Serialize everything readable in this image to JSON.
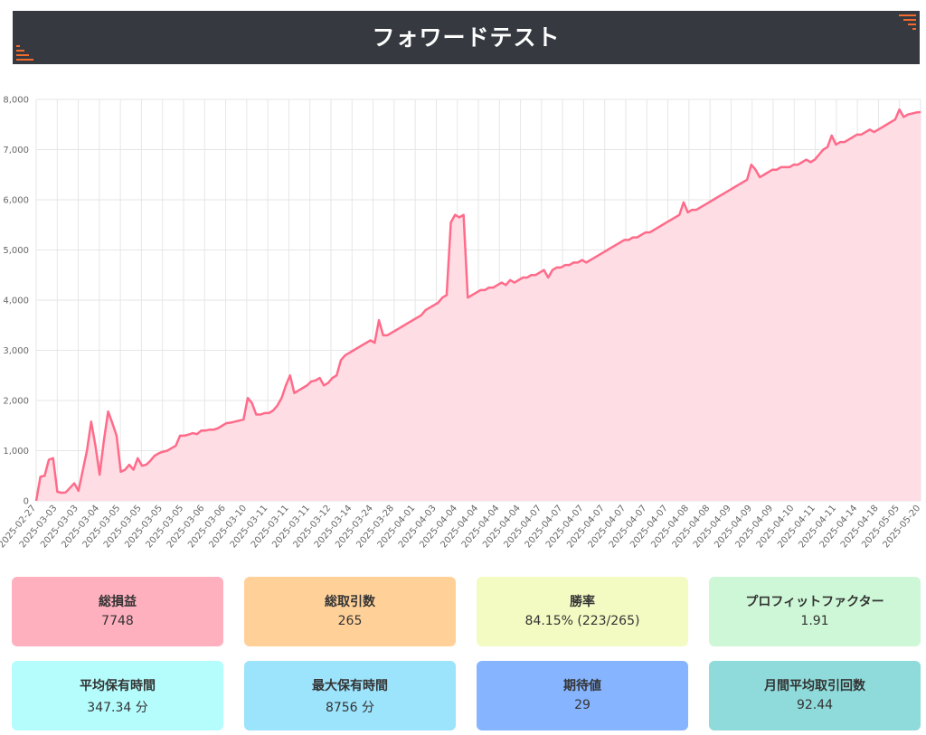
{
  "header": {
    "title": "フォワードテスト",
    "accent_color": "#f26a2c"
  },
  "chart_data": {
    "type": "area",
    "title": "",
    "xlabel": "",
    "ylabel": "",
    "ylim": [
      0,
      8000
    ],
    "y_ticks": [
      "0",
      "1,000",
      "2,000",
      "3,000",
      "4,000",
      "5,000",
      "6,000",
      "7,000",
      "8,000"
    ],
    "grid": true,
    "legend": "none",
    "line_color": "#ff6b8a",
    "fill_color": "#ffdde4",
    "x_tick_labels": [
      "2025-02-27",
      "2025-03-03",
      "2025-03-03",
      "2025-03-04",
      "2025-03-05",
      "2025-03-05",
      "2025-03-05",
      "2025-03-05",
      "2025-03-06",
      "2025-03-06",
      "2025-03-10",
      "2025-03-11",
      "2025-03-11",
      "2025-03-11",
      "2025-03-12",
      "2025-03-14",
      "2025-03-24",
      "2025-03-28",
      "2025-04-01",
      "2025-04-03",
      "2025-04-04",
      "2025-04-04",
      "2025-04-04",
      "2025-04-04",
      "2025-04-07",
      "2025-04-07",
      "2025-04-07",
      "2025-04-07",
      "2025-04-07",
      "2025-04-07",
      "2025-04-07",
      "2025-04-08",
      "2025-04-08",
      "2025-04-09",
      "2025-04-09",
      "2025-04-09",
      "2025-04-10",
      "2025-04-11",
      "2025-04-11",
      "2025-04-14",
      "2025-04-18",
      "2025-05-05",
      "2025-05-20"
    ],
    "series": [
      {
        "values": [
          0,
          480,
          500,
          820,
          850,
          180,
          160,
          170,
          260,
          350,
          200,
          600,
          1000,
          1580,
          1100,
          520,
          1200,
          1780,
          1550,
          1300,
          580,
          620,
          720,
          620,
          850,
          700,
          720,
          800,
          900,
          950,
          980,
          1000,
          1050,
          1100,
          1300,
          1300,
          1320,
          1350,
          1330,
          1400,
          1400,
          1420,
          1420,
          1450,
          1500,
          1550,
          1560,
          1580,
          1600,
          1620,
          2050,
          1950,
          1720,
          1720,
          1750,
          1750,
          1800,
          1900,
          2050,
          2300,
          2500,
          2150,
          2200,
          2250,
          2300,
          2380,
          2400,
          2450,
          2300,
          2350,
          2450,
          2500,
          2800,
          2900,
          2950,
          3000,
          3050,
          3100,
          3150,
          3200,
          3150,
          3600,
          3300,
          3300,
          3350,
          3400,
          3450,
          3500,
          3550,
          3600,
          3650,
          3700,
          3800,
          3850,
          3900,
          3950,
          4050,
          4100,
          5550,
          5700,
          5650,
          5700,
          4050,
          4100,
          4150,
          4200,
          4200,
          4250,
          4250,
          4300,
          4350,
          4300,
          4400,
          4350,
          4400,
          4450,
          4450,
          4500,
          4500,
          4550,
          4600,
          4450,
          4600,
          4650,
          4650,
          4700,
          4700,
          4750,
          4750,
          4800,
          4750,
          4800,
          4850,
          4900,
          4950,
          5000,
          5050,
          5100,
          5150,
          5200,
          5200,
          5250,
          5250,
          5300,
          5350,
          5350,
          5400,
          5450,
          5500,
          5550,
          5600,
          5650,
          5700,
          5950,
          5750,
          5800,
          5800,
          5850,
          5900,
          5950,
          6000,
          6050,
          6100,
          6150,
          6200,
          6250,
          6300,
          6350,
          6400,
          6700,
          6600,
          6450,
          6500,
          6550,
          6600,
          6600,
          6650,
          6650,
          6650,
          6700,
          6700,
          6750,
          6800,
          6750,
          6800,
          6900,
          7000,
          7050,
          7280,
          7100,
          7150,
          7150,
          7200,
          7250,
          7300,
          7300,
          7350,
          7400,
          7350,
          7400,
          7450,
          7500,
          7550,
          7600,
          7800,
          7650,
          7700,
          7720,
          7740,
          7748
        ]
      }
    ]
  },
  "stats": [
    {
      "title": "総損益",
      "value": "7748",
      "color": "#ffb0bf"
    },
    {
      "title": "総取引数",
      "value": "265",
      "color": "#ffd199"
    },
    {
      "title": "勝率",
      "value": "84.15% (223/265)",
      "color": "#f3fbc3"
    },
    {
      "title": "プロフィットファクター",
      "value": "1.91",
      "color": "#cdf7d6"
    },
    {
      "title": "平均保有時間",
      "value": "347.34 分",
      "color": "#b5fdfd"
    },
    {
      "title": "最大保有時間",
      "value": "8756 分",
      "color": "#9ce3fc"
    },
    {
      "title": "期待値",
      "value": "29",
      "color": "#86b4ff"
    },
    {
      "title": "月間平均取引回数",
      "value": "92.44",
      "color": "#8fdada"
    }
  ]
}
